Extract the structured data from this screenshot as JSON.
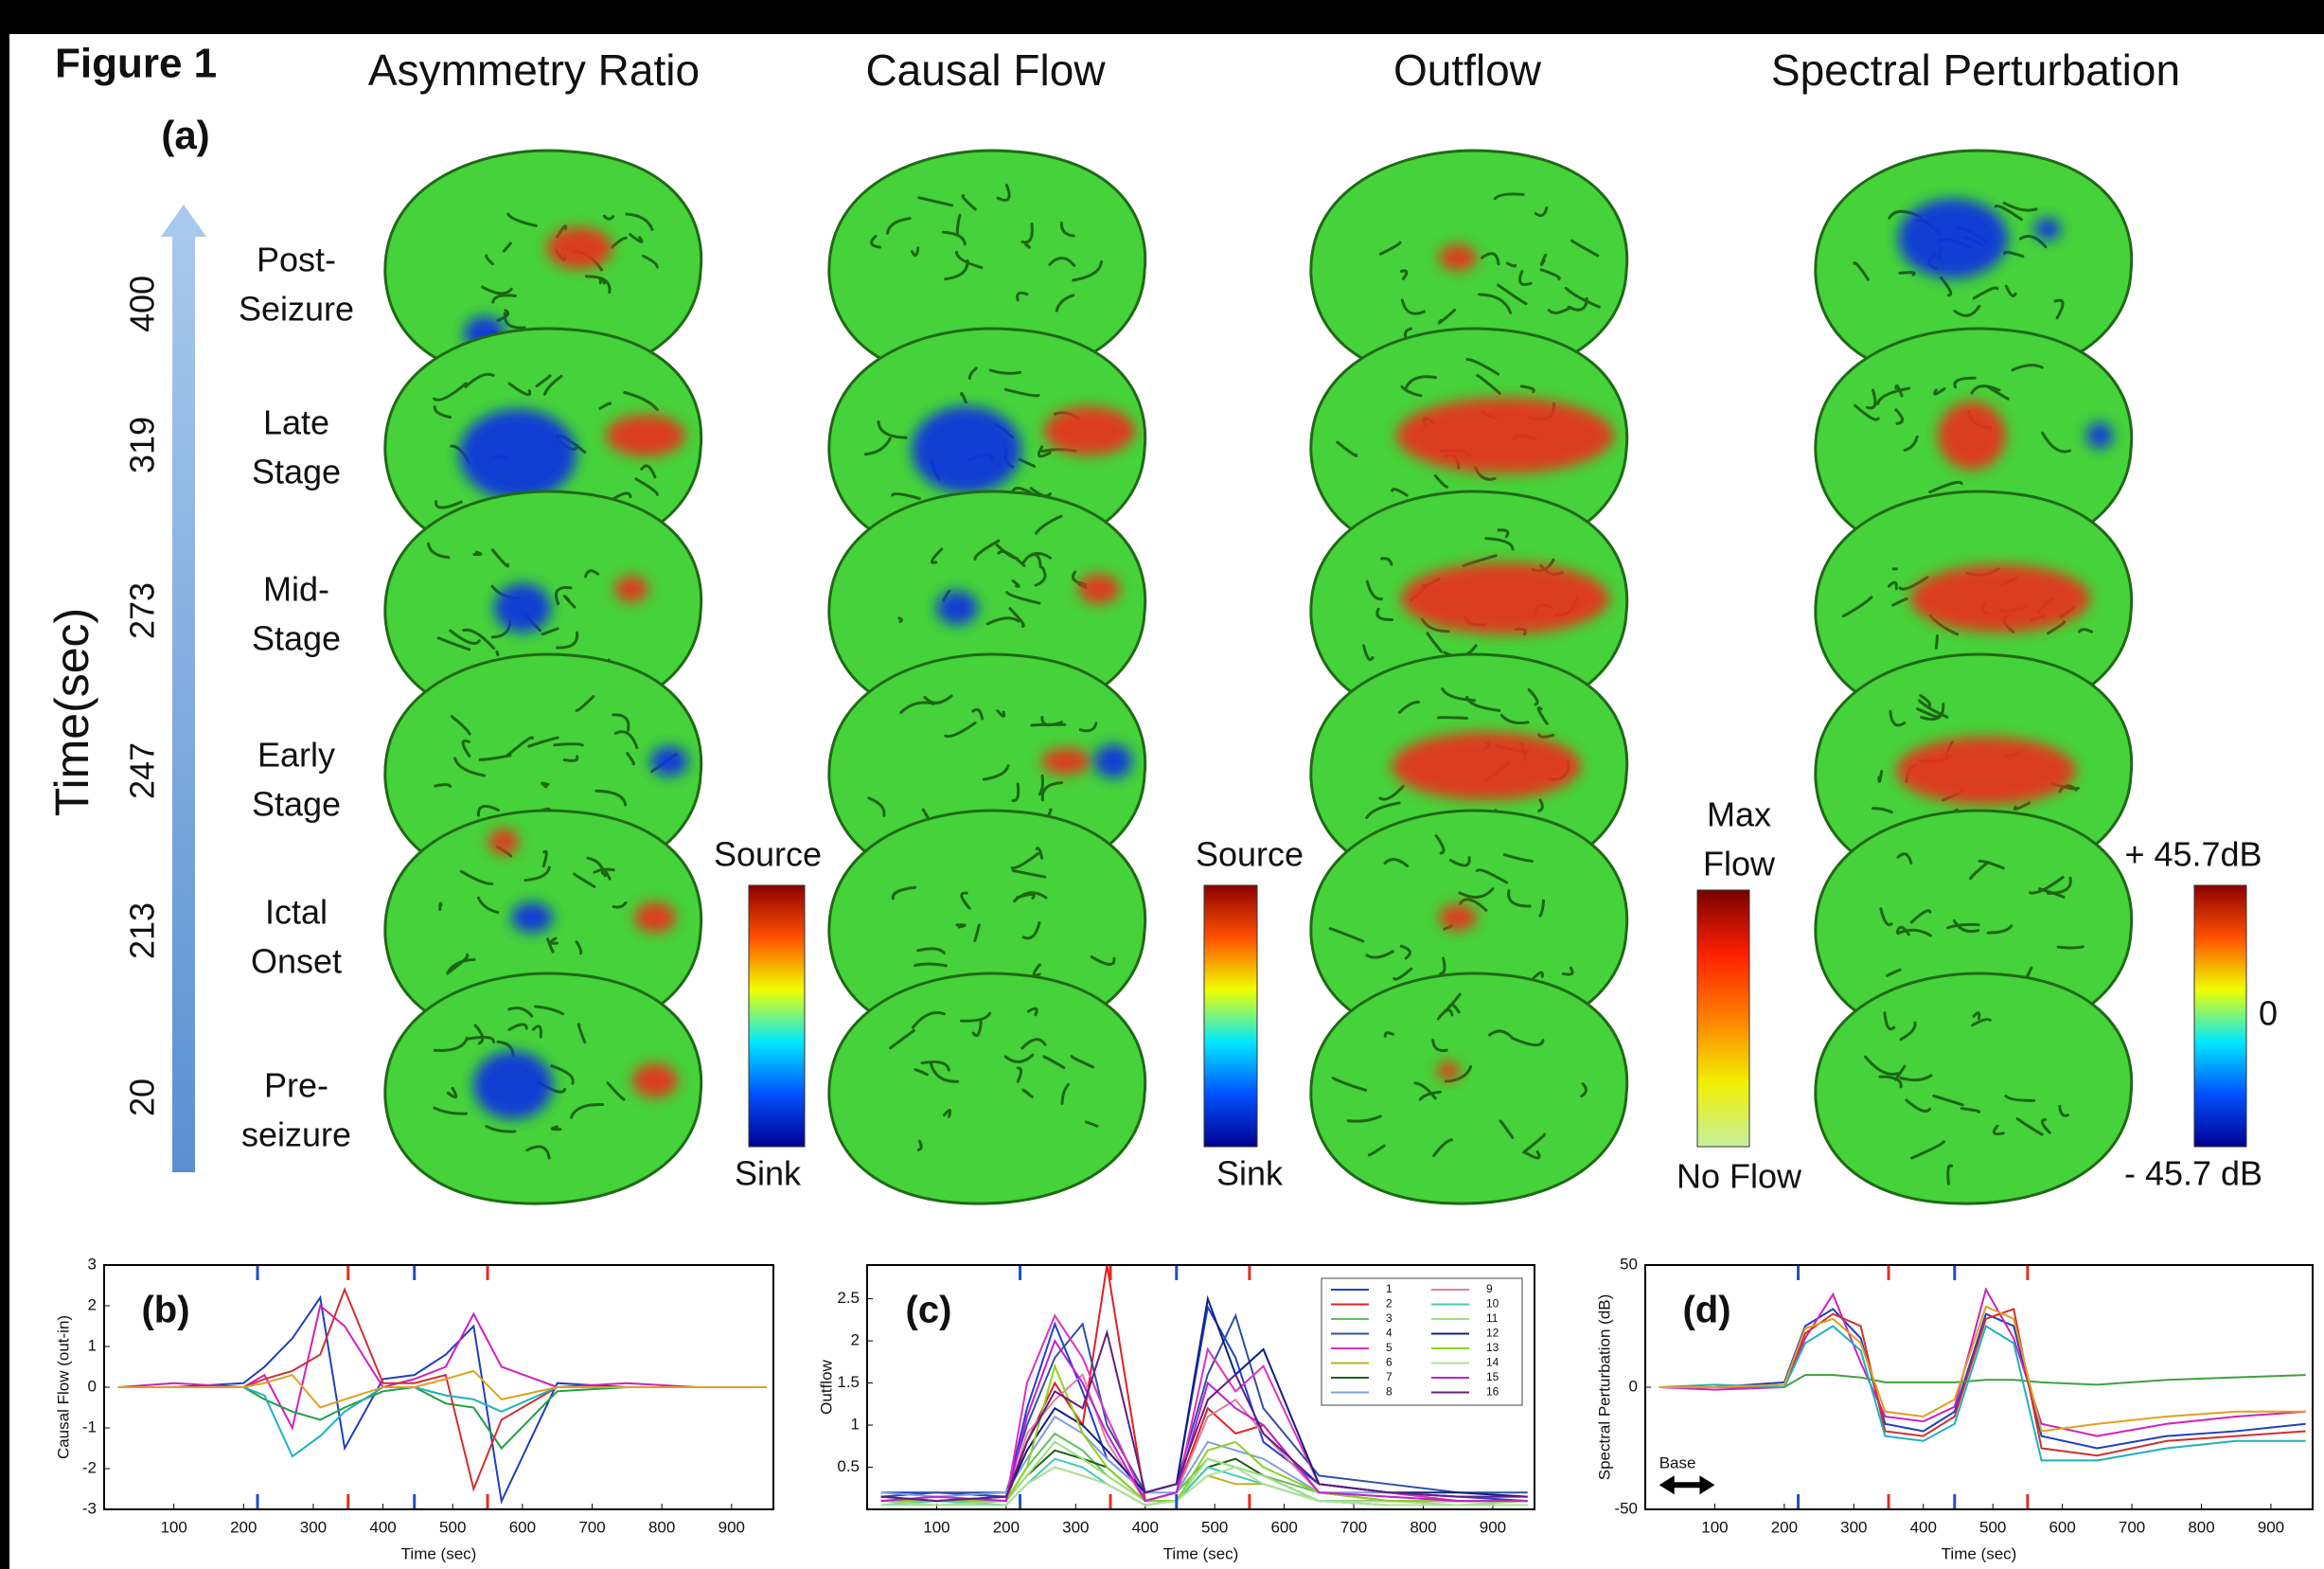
{
  "figure": {
    "title": "Figure 1",
    "panel_label": "(a)",
    "columns": [
      "Asymmetry Ratio",
      "Causal Flow",
      "Outflow",
      "Spectral Perturbation"
    ],
    "time_axis_label": "Time(sec)",
    "time_ticks": [
      400,
      319,
      273,
      247,
      213,
      20
    ],
    "stages": [
      [
        "Post-",
        "Seizure"
      ],
      [
        "Late",
        "Stage"
      ],
      [
        "Mid-",
        "Stage"
      ],
      [
        "Early",
        "Stage"
      ],
      [
        "Ictal",
        "Onset"
      ],
      [
        "Pre-",
        "seizure"
      ]
    ],
    "colorbars": [
      {
        "top": [
          "Source"
        ],
        "bottom": [
          "Sink"
        ],
        "colors": [
          "#00008f",
          "#0050ff",
          "#00e8ff",
          "#f0ff00",
          "#ff5000",
          "#8f0000"
        ]
      },
      {
        "top": [
          "Source"
        ],
        "bottom": [
          "Sink"
        ],
        "colors": [
          "#00008f",
          "#0050ff",
          "#00e8ff",
          "#f0ff00",
          "#ff5000",
          "#8f0000"
        ]
      },
      {
        "top": [
          "Max",
          "Flow"
        ],
        "bottom": [
          "No Flow"
        ],
        "colors": [
          "#c8f0a0",
          "#f0f000",
          "#ff8000",
          "#ff2000",
          "#7a0000"
        ]
      },
      {
        "top": [
          "+ 45.7dB"
        ],
        "mid": "0",
        "bottom": [
          "- 45.7 dB"
        ],
        "colors": [
          "#00008f",
          "#0050ff",
          "#00e8ff",
          "#f0ff00",
          "#ff5000",
          "#8f0000"
        ]
      }
    ]
  },
  "chart_data": [
    {
      "type": "line",
      "panel_label": "(b)",
      "x_label": "Time (sec)",
      "y_label": "Causal Flow (out-in)",
      "xlim": [
        0,
        960
      ],
      "xticks": [
        100,
        200,
        300,
        400,
        500,
        600,
        700,
        800,
        900
      ],
      "ylim": [
        -3,
        3
      ],
      "yticks": [
        -3,
        -2,
        -1,
        0,
        1,
        2,
        3
      ],
      "event_lines": [
        {
          "value": 220,
          "color": "#2050c0"
        },
        {
          "value": 350,
          "color": "#e03020"
        },
        {
          "value": 445,
          "color": "#2050c0"
        },
        {
          "value": 550,
          "color": "#e03020"
        }
      ],
      "x": [
        20,
        100,
        200,
        230,
        270,
        310,
        345,
        400,
        445,
        490,
        530,
        570,
        650,
        750,
        850,
        950
      ],
      "series": [
        {
          "color": "#1f3fbf",
          "values": [
            0,
            0,
            0.1,
            0.5,
            1.2,
            2.2,
            -1.5,
            0.2,
            0.3,
            0.8,
            1.5,
            -2.8,
            0.1,
            0,
            0,
            0
          ]
        },
        {
          "color": "#d020c0",
          "values": [
            0,
            0.1,
            0,
            0.3,
            -1,
            2,
            1.5,
            0,
            0.2,
            0.5,
            1.8,
            0.5,
            0,
            0.1,
            0,
            0
          ]
        },
        {
          "color": "#20a040",
          "values": [
            0,
            0,
            0,
            -0.3,
            -0.6,
            -0.8,
            -0.5,
            -0.1,
            0,
            -0.4,
            -0.5,
            -1.5,
            -0.1,
            0,
            0,
            0
          ]
        },
        {
          "color": "#d03030",
          "values": [
            0,
            0,
            0,
            0.2,
            0.4,
            0.8,
            2.4,
            0.1,
            0.1,
            0.3,
            -2.5,
            -0.8,
            0,
            0,
            0,
            0
          ]
        },
        {
          "color": "#20b0c0",
          "values": [
            0,
            0,
            0,
            -0.2,
            -1.7,
            -1.2,
            -0.6,
            0,
            0,
            -0.2,
            -0.3,
            -0.6,
            0,
            0,
            0,
            0
          ]
        },
        {
          "color": "#e0a020",
          "values": [
            0,
            0,
            0,
            0.1,
            0.3,
            -0.5,
            -0.3,
            0,
            0,
            0.2,
            0.4,
            -0.3,
            0,
            0,
            0,
            0
          ]
        }
      ]
    },
    {
      "type": "line",
      "panel_label": "(c)",
      "x_label": "Time (sec)",
      "y_label": "Outflow",
      "xlim": [
        0,
        960
      ],
      "xticks": [
        100,
        200,
        300,
        400,
        500,
        600,
        700,
        800,
        900
      ],
      "ylim": [
        0,
        2.9
      ],
      "yticks": [
        0.5,
        1,
        1.5,
        2,
        2.5
      ],
      "event_lines": [
        {
          "value": 220,
          "color": "#2050c0"
        },
        {
          "value": 350,
          "color": "#e03020"
        },
        {
          "value": 445,
          "color": "#2050c0"
        },
        {
          "value": 550,
          "color": "#e03020"
        }
      ],
      "legend": "upper right",
      "x": [
        20,
        100,
        200,
        230,
        270,
        310,
        345,
        400,
        445,
        490,
        530,
        570,
        650,
        750,
        850,
        950
      ],
      "series": [
        {
          "name": "1",
          "color": "#2040d0",
          "values": [
            0.2,
            0.2,
            0.15,
            1.2,
            2.2,
            1.4,
            0.6,
            0.2,
            0.3,
            2.4,
            1.8,
            0.8,
            0.3,
            0.2,
            0.15,
            0.1
          ]
        },
        {
          "name": "2",
          "color": "#e02020",
          "values": [
            0.1,
            0.1,
            0.1,
            0.8,
            1.5,
            1.0,
            2.9,
            0.1,
            0.2,
            1.2,
            0.9,
            1.0,
            0.2,
            0.1,
            0.1,
            0.1
          ]
        },
        {
          "name": "3",
          "color": "#60c060",
          "values": [
            0.1,
            0.15,
            0.1,
            0.5,
            0.9,
            0.7,
            0.4,
            0.1,
            0.2,
            0.6,
            0.5,
            0.4,
            0.2,
            0.1,
            0.1,
            0.1
          ]
        },
        {
          "name": "4",
          "color": "#3050a0",
          "values": [
            0.15,
            0.2,
            0.2,
            1.0,
            1.8,
            2.2,
            1.0,
            0.2,
            0.3,
            1.6,
            2.3,
            1.2,
            0.4,
            0.3,
            0.2,
            0.2
          ]
        },
        {
          "name": "5",
          "color": "#e030c0",
          "values": [
            0.1,
            0.1,
            0.1,
            1.5,
            2.3,
            1.8,
            1.1,
            0.1,
            0.2,
            1.9,
            1.4,
            1.7,
            0.3,
            0.2,
            0.1,
            0.1
          ]
        },
        {
          "name": "6",
          "color": "#c0b020",
          "values": [
            0.05,
            0.05,
            0.05,
            0.3,
            0.5,
            0.4,
            0.3,
            0.05,
            0.1,
            0.4,
            0.3,
            0.3,
            0.1,
            0.05,
            0.05,
            0.05
          ]
        },
        {
          "name": "7",
          "color": "#206020",
          "values": [
            0.1,
            0.1,
            0.1,
            0.4,
            0.7,
            0.6,
            0.5,
            0.1,
            0.1,
            0.5,
            0.6,
            0.4,
            0.1,
            0.1,
            0.1,
            0.1
          ]
        },
        {
          "name": "8",
          "color": "#80a0e0",
          "values": [
            0.2,
            0.15,
            0.2,
            0.6,
            1.1,
            0.9,
            0.6,
            0.2,
            0.2,
            0.8,
            0.7,
            0.6,
            0.2,
            0.2,
            0.15,
            0.15
          ]
        },
        {
          "name": "9",
          "color": "#e080a0",
          "values": [
            0.1,
            0.1,
            0.1,
            0.9,
            1.3,
            1.6,
            0.8,
            0.1,
            0.2,
            1.1,
            1.3,
            0.9,
            0.2,
            0.1,
            0.1,
            0.1
          ]
        },
        {
          "name": "10",
          "color": "#40d0b0",
          "values": [
            0.05,
            0.1,
            0.05,
            0.3,
            0.6,
            0.5,
            0.3,
            0.05,
            0.1,
            0.5,
            0.4,
            0.3,
            0.1,
            0.05,
            0.05,
            0.05
          ]
        },
        {
          "name": "11",
          "color": "#a0e080",
          "values": [
            0.1,
            0.05,
            0.1,
            0.4,
            0.8,
            0.6,
            0.4,
            0.1,
            0.1,
            0.6,
            0.5,
            0.4,
            0.1,
            0.1,
            0.05,
            0.1
          ]
        },
        {
          "name": "12",
          "color": "#102080",
          "values": [
            0.15,
            0.1,
            0.15,
            0.7,
            1.2,
            1.0,
            0.7,
            0.2,
            0.3,
            2.5,
            1.6,
            1.9,
            0.3,
            0.2,
            0.2,
            0.15
          ]
        },
        {
          "name": "13",
          "color": "#90d020",
          "values": [
            0.1,
            0.1,
            0.1,
            0.5,
            1.7,
            0.9,
            0.5,
            0.1,
            0.1,
            0.7,
            0.8,
            0.5,
            0.2,
            0.1,
            0.1,
            0.1
          ]
        },
        {
          "name": "14",
          "color": "#b0e0a0",
          "values": [
            0.05,
            0.05,
            0.05,
            0.3,
            0.5,
            0.4,
            0.3,
            0.05,
            0.1,
            0.4,
            0.5,
            0.3,
            0.1,
            0.05,
            0.05,
            0.05
          ]
        },
        {
          "name": "15",
          "color": "#c020d0",
          "values": [
            0.1,
            0.15,
            0.1,
            1.1,
            2.0,
            1.5,
            0.9,
            0.1,
            0.2,
            1.5,
            1.2,
            1.0,
            0.2,
            0.15,
            0.1,
            0.1
          ]
        },
        {
          "name": "16",
          "color": "#602080",
          "values": [
            0.15,
            0.1,
            0.15,
            0.8,
            1.4,
            1.2,
            2.1,
            0.2,
            0.3,
            1.3,
            1.6,
            0.9,
            0.3,
            0.2,
            0.15,
            0.15
          ]
        }
      ]
    },
    {
      "type": "line",
      "panel_label": "(d)",
      "x_label": "Time (sec)",
      "y_label": "Spectral Perturbation (dB)",
      "xlim": [
        0,
        960
      ],
      "xticks": [
        100,
        200,
        300,
        400,
        500,
        600,
        700,
        800,
        900
      ],
      "ylim": [
        -50,
        50
      ],
      "yticks": [
        -50,
        0,
        50
      ],
      "event_lines": [
        {
          "value": 220,
          "color": "#2050c0"
        },
        {
          "value": 350,
          "color": "#e03020"
        },
        {
          "value": 445,
          "color": "#2050c0"
        },
        {
          "value": 550,
          "color": "#e03020"
        }
      ],
      "annotation": {
        "text": "Base",
        "x": [
          20,
          100
        ],
        "y": -40
      },
      "x": [
        20,
        100,
        200,
        230,
        270,
        310,
        345,
        400,
        445,
        490,
        530,
        570,
        650,
        750,
        850,
        950
      ],
      "series": [
        {
          "color": "#1f3fbf",
          "values": [
            0,
            0,
            2,
            25,
            32,
            20,
            -15,
            -18,
            -10,
            30,
            25,
            -20,
            -25,
            -20,
            -18,
            -15
          ]
        },
        {
          "color": "#d020c0",
          "values": [
            0,
            -1,
            0,
            20,
            38,
            10,
            -12,
            -14,
            -8,
            40,
            20,
            -15,
            -20,
            -15,
            -12,
            -10
          ]
        },
        {
          "color": "#d03030",
          "values": [
            0,
            0,
            1,
            22,
            30,
            25,
            -18,
            -20,
            -12,
            28,
            32,
            -25,
            -28,
            -22,
            -20,
            -18
          ]
        },
        {
          "color": "#40a040",
          "values": [
            0,
            0,
            0,
            5,
            5,
            4,
            2,
            2,
            2,
            3,
            3,
            2,
            1,
            3,
            4,
            5
          ]
        },
        {
          "color": "#20b0c0",
          "values": [
            0,
            1,
            0,
            18,
            25,
            15,
            -20,
            -22,
            -15,
            25,
            18,
            -30,
            -30,
            -25,
            -22,
            -22
          ]
        },
        {
          "color": "#e0a020",
          "values": [
            0,
            0,
            1,
            24,
            28,
            18,
            -10,
            -12,
            -5,
            33,
            28,
            -18,
            -15,
            -12,
            -10,
            -10
          ]
        }
      ]
    }
  ]
}
